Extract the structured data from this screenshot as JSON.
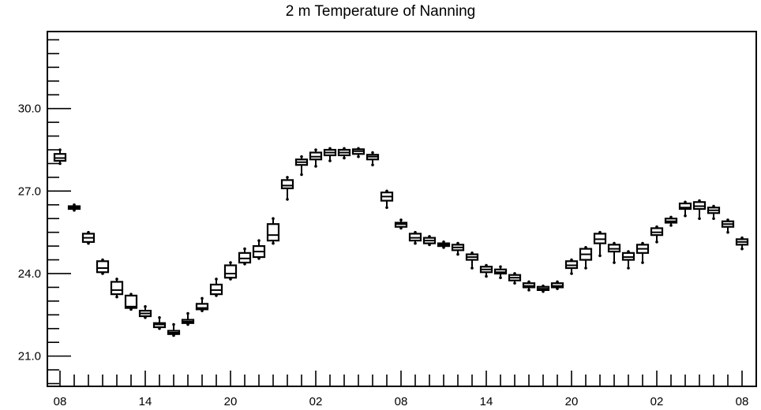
{
  "chart_data": {
    "type": "box",
    "title": "2 m Temperature of Nanning",
    "xlabel": "",
    "ylabel": "",
    "ylim": [
      19.9,
      32.8
    ],
    "y_ticks": [
      21.0,
      24.0,
      27.0,
      30.0
    ],
    "y_tick_labels": [
      "21.0",
      "24.0",
      "27.0",
      "30.0"
    ],
    "x_ticks": [
      0,
      6,
      12,
      18,
      24,
      30,
      36,
      42,
      48
    ],
    "x_tick_labels": [
      "08",
      "14",
      "20",
      "02",
      "08",
      "14",
      "20",
      "02",
      "08"
    ],
    "n_boxes": 49,
    "series": [
      {
        "q1": [
          28.1,
          26.35,
          25.15,
          24.05,
          23.25,
          22.75,
          22.45,
          22.05,
          21.8,
          22.2,
          22.7,
          23.25,
          23.85,
          24.4,
          24.6,
          25.2,
          27.1,
          27.95,
          28.15,
          28.3,
          28.3,
          28.35,
          28.15,
          26.65,
          25.7,
          25.2,
          25.1,
          25.0,
          24.85,
          24.5,
          24.05,
          24.0,
          23.75,
          23.5,
          23.4,
          23.5,
          24.2,
          24.5,
          25.1,
          24.8,
          24.5,
          24.75,
          25.4,
          25.85,
          26.35,
          26.35,
          26.2,
          25.7,
          25.05
        ],
        "median": [
          28.2,
          26.4,
          25.3,
          24.2,
          23.4,
          22.8,
          22.55,
          22.15,
          21.85,
          22.25,
          22.75,
          23.4,
          24.0,
          24.55,
          24.8,
          25.4,
          27.2,
          28.05,
          28.25,
          28.4,
          28.4,
          28.45,
          28.25,
          26.8,
          25.8,
          25.3,
          25.2,
          25.05,
          24.95,
          24.6,
          24.15,
          24.05,
          23.85,
          23.55,
          23.45,
          23.55,
          24.3,
          24.7,
          25.25,
          24.9,
          24.6,
          24.9,
          25.5,
          25.9,
          26.4,
          26.45,
          26.3,
          25.8,
          25.15
        ],
        "q3": [
          28.35,
          26.45,
          25.45,
          24.45,
          23.7,
          23.2,
          22.65,
          22.2,
          21.92,
          22.32,
          22.9,
          23.6,
          24.3,
          24.75,
          25.0,
          25.8,
          27.4,
          28.15,
          28.4,
          28.5,
          28.5,
          28.52,
          28.32,
          26.95,
          25.85,
          25.45,
          25.3,
          25.1,
          25.05,
          24.7,
          24.25,
          24.15,
          23.95,
          23.65,
          23.52,
          23.65,
          24.45,
          24.9,
          25.45,
          25.05,
          24.75,
          25.05,
          25.65,
          26.0,
          26.55,
          26.6,
          26.4,
          25.9,
          25.25
        ],
        "min": [
          28.0,
          26.3,
          25.1,
          24.0,
          23.15,
          22.7,
          22.4,
          22.0,
          21.75,
          22.15,
          22.65,
          23.2,
          23.8,
          24.35,
          24.55,
          25.1,
          26.7,
          27.6,
          27.9,
          28.1,
          28.2,
          28.25,
          27.95,
          26.4,
          25.65,
          25.1,
          25.05,
          24.95,
          24.7,
          24.2,
          23.9,
          23.85,
          23.65,
          23.4,
          23.35,
          23.45,
          24.0,
          24.2,
          24.65,
          24.4,
          24.2,
          24.4,
          25.15,
          25.75,
          26.1,
          26.0,
          26.0,
          25.5,
          24.9
        ],
        "max": [
          28.5,
          26.5,
          25.5,
          24.5,
          23.8,
          23.25,
          22.8,
          22.4,
          22.15,
          22.55,
          23.1,
          23.8,
          24.4,
          24.9,
          25.2,
          26.0,
          27.5,
          28.25,
          28.5,
          28.55,
          28.55,
          28.55,
          28.4,
          27.0,
          25.95,
          25.5,
          25.35,
          25.15,
          25.1,
          24.75,
          24.3,
          24.25,
          24.0,
          23.7,
          23.55,
          23.7,
          24.5,
          24.95,
          25.5,
          25.1,
          24.8,
          25.1,
          25.7,
          26.05,
          26.6,
          26.65,
          26.45,
          25.95,
          25.3
        ]
      }
    ]
  }
}
